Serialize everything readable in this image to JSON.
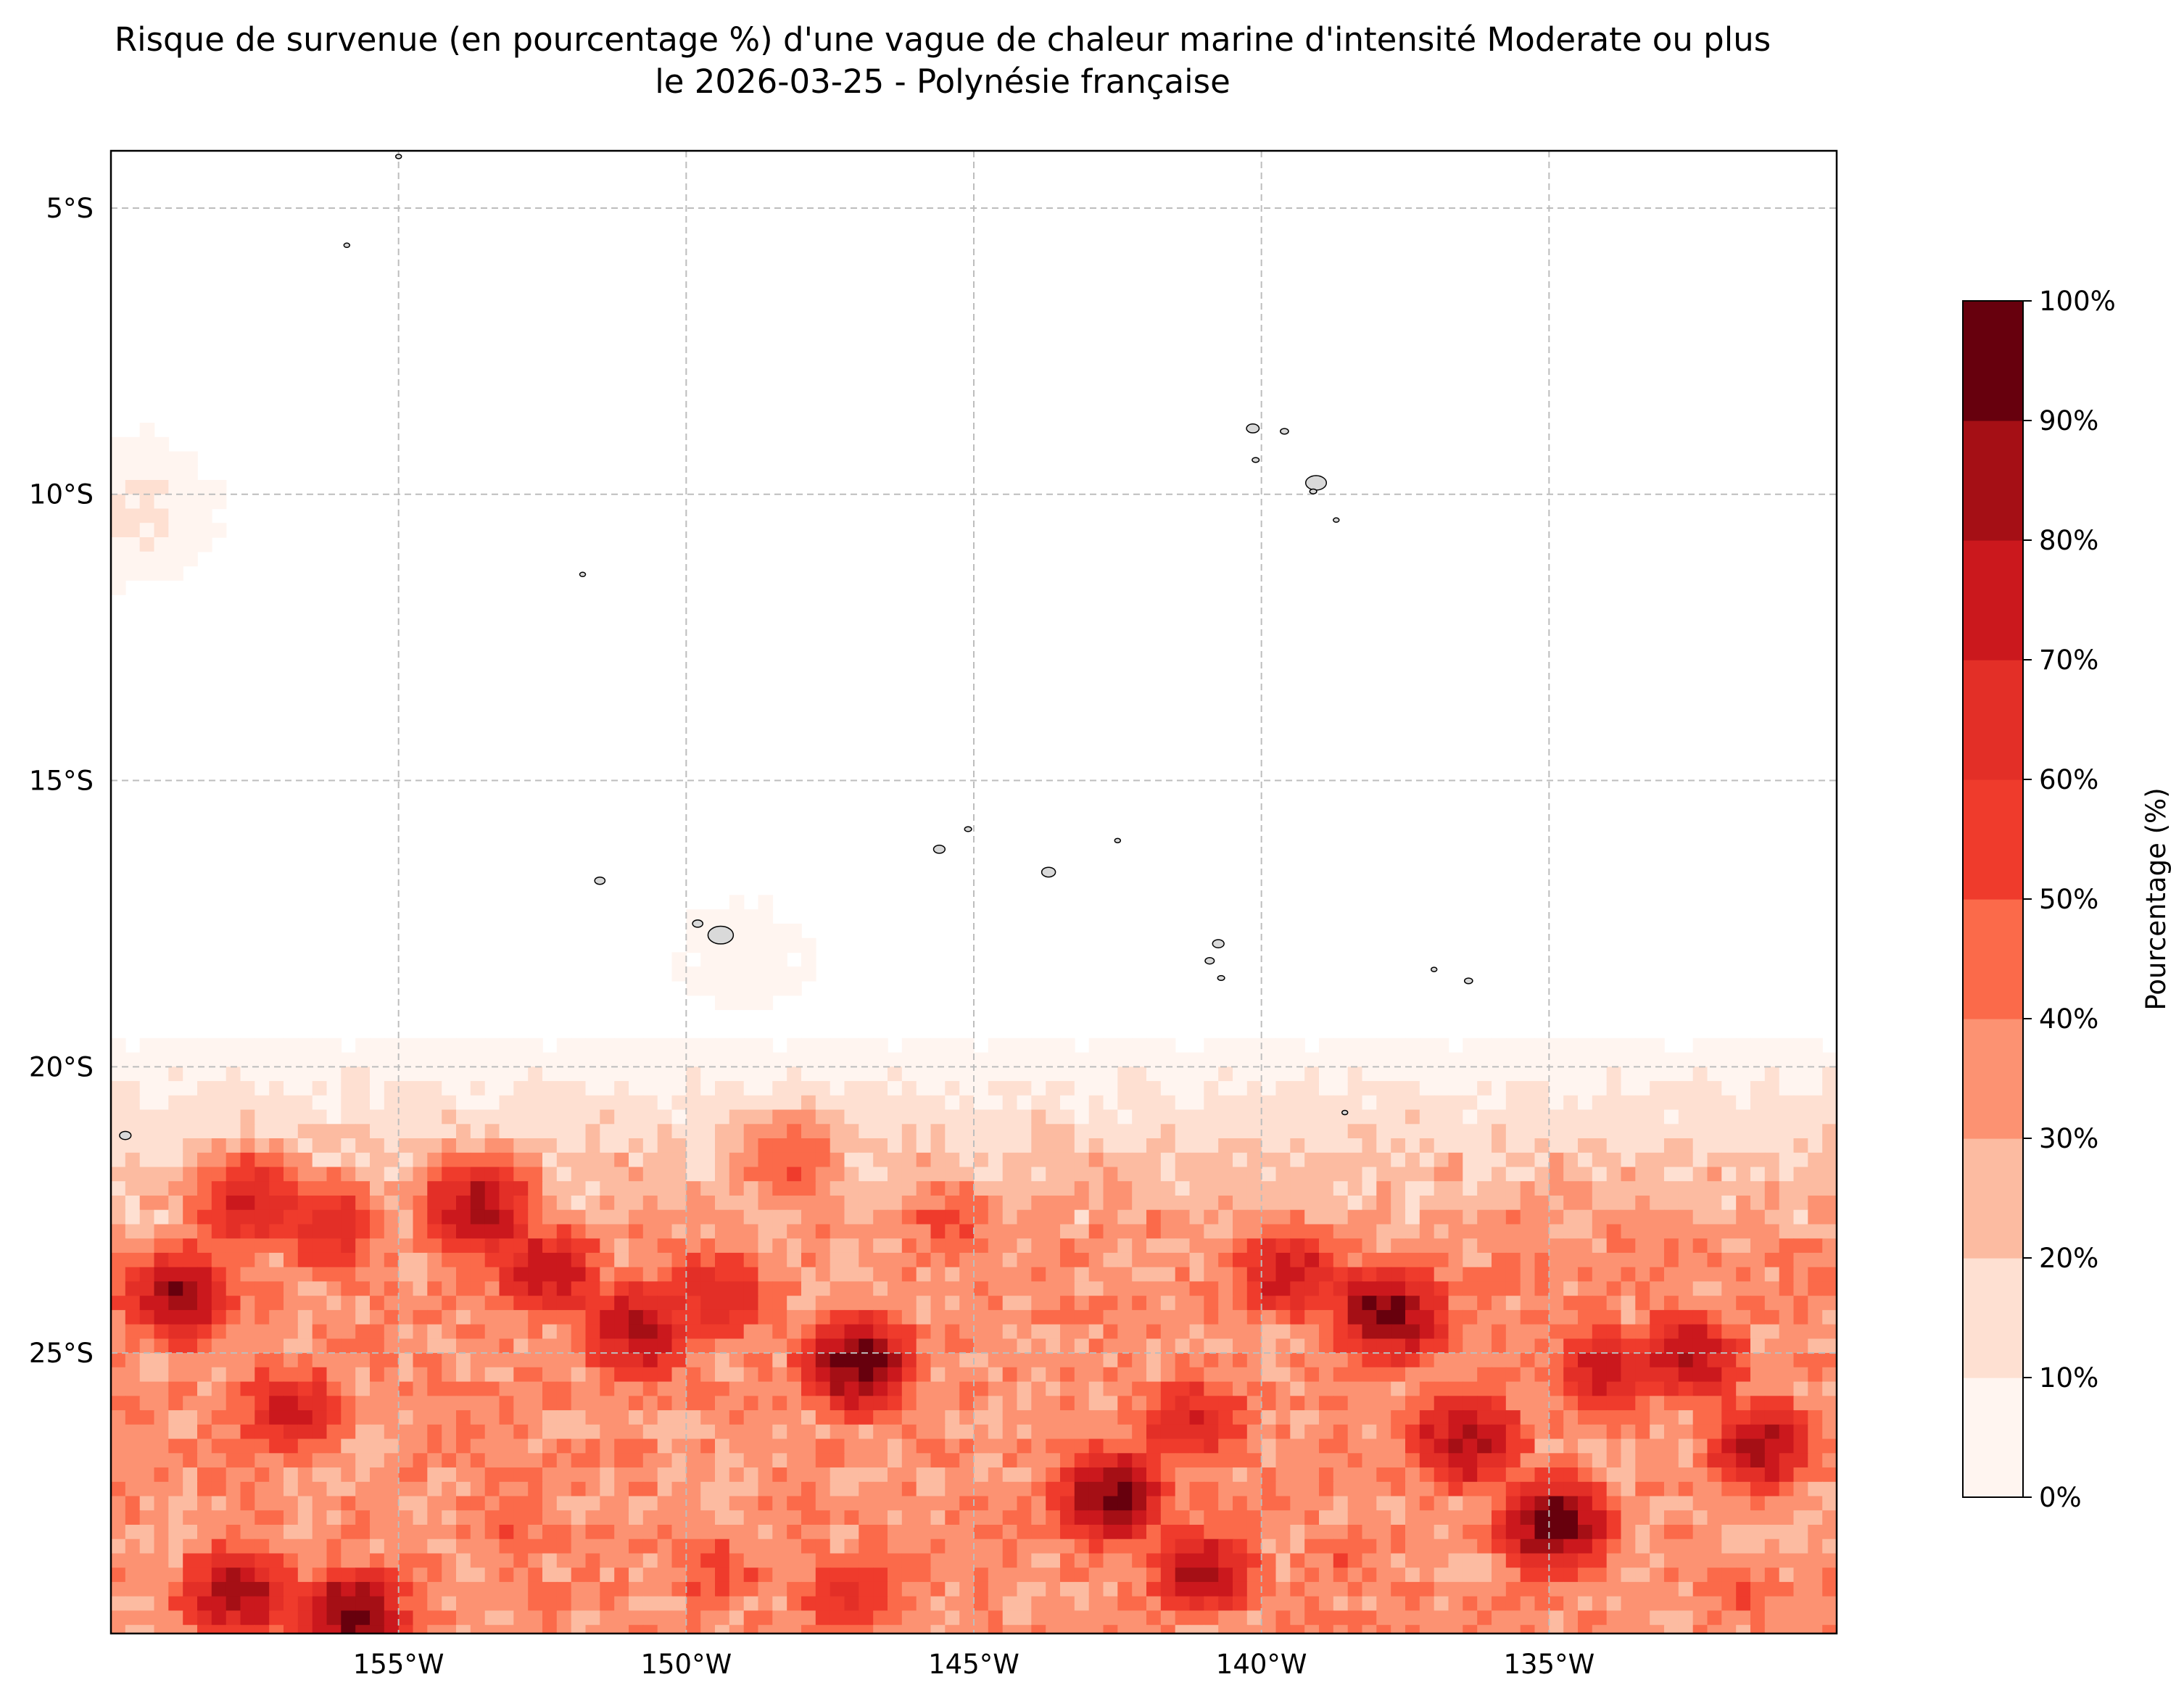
{
  "title": {
    "line1": "Risque de survenue (en pourcentage %) d'une vague de chaleur marine d'intensité Moderate ou plus",
    "line2": "le 2026-03-25 - Polynésie française"
  },
  "map": {
    "type": "filled-contour",
    "lon_range": [
      -160,
      -130
    ],
    "lat_range": [
      -29.9,
      -4.0
    ],
    "x_ticks": [
      {
        "value": -155,
        "label": "155°W"
      },
      {
        "value": -150,
        "label": "150°W"
      },
      {
        "value": -145,
        "label": "145°W"
      },
      {
        "value": -140,
        "label": "140°W"
      },
      {
        "value": -135,
        "label": "135°W"
      }
    ],
    "y_ticks": [
      {
        "value": -5,
        "label": "5°S"
      },
      {
        "value": -10,
        "label": "10°S"
      },
      {
        "value": -15,
        "label": "15°S"
      },
      {
        "value": -20,
        "label": "20°S"
      },
      {
        "value": -25,
        "label": "25°S"
      }
    ],
    "grid": true,
    "land_color": "#d9d9d9",
    "coast_color": "#000000",
    "hotspots": [
      {
        "lon": -158.8,
        "lat": -24.0,
        "value": 85
      },
      {
        "lon": -157.6,
        "lat": -22.4,
        "value": 72
      },
      {
        "lon": -156.2,
        "lat": -22.8,
        "value": 66
      },
      {
        "lon": -156.8,
        "lat": -26.0,
        "value": 72
      },
      {
        "lon": -153.6,
        "lat": -22.5,
        "value": 84
      },
      {
        "lon": -152.4,
        "lat": -23.6,
        "value": 78
      },
      {
        "lon": -150.8,
        "lat": -24.6,
        "value": 82
      },
      {
        "lon": -149.4,
        "lat": -24.0,
        "value": 70
      },
      {
        "lon": -147.0,
        "lat": -25.2,
        "value": 96
      },
      {
        "lon": -145.4,
        "lat": -22.8,
        "value": 52
      },
      {
        "lon": -148.2,
        "lat": -21.7,
        "value": 50
      },
      {
        "lon": -142.6,
        "lat": -27.5,
        "value": 92
      },
      {
        "lon": -141.2,
        "lat": -26.2,
        "value": 70
      },
      {
        "lon": -141.0,
        "lat": -28.8,
        "value": 80
      },
      {
        "lon": -139.5,
        "lat": -23.6,
        "value": 76
      },
      {
        "lon": -137.8,
        "lat": -24.3,
        "value": 95
      },
      {
        "lon": -136.4,
        "lat": -26.5,
        "value": 86
      },
      {
        "lon": -134.9,
        "lat": -28.0,
        "value": 97
      },
      {
        "lon": -134.0,
        "lat": -25.3,
        "value": 75
      },
      {
        "lon": -132.6,
        "lat": -25.1,
        "value": 80
      },
      {
        "lon": -131.3,
        "lat": -26.6,
        "value": 82
      },
      {
        "lon": -157.8,
        "lat": -29.2,
        "value": 86
      },
      {
        "lon": -155.8,
        "lat": -29.6,
        "value": 94
      },
      {
        "lon": -153.0,
        "lat": -28.0,
        "value": 45
      },
      {
        "lon": -149.5,
        "lat": -28.8,
        "value": 55
      },
      {
        "lon": -147.2,
        "lat": -29.3,
        "value": 62
      },
      {
        "lon": -144.4,
        "lat": -28.6,
        "value": 38
      },
      {
        "lon": -138.6,
        "lat": -28.5,
        "value": 45
      },
      {
        "lon": -131.8,
        "lat": -29.2,
        "value": 48
      },
      {
        "lon": -159.7,
        "lat": -10.3,
        "value": 12
      },
      {
        "lon": -149.0,
        "lat": -18.0,
        "value": 6
      }
    ],
    "islands": [
      {
        "lon": -155.0,
        "lat": -4.1,
        "size": 0.04
      },
      {
        "lon": -155.9,
        "lat": -5.65,
        "size": 0.05
      },
      {
        "lon": -151.8,
        "lat": -11.4,
        "size": 0.05
      },
      {
        "lon": -140.15,
        "lat": -8.85,
        "size": 0.11
      },
      {
        "lon": -139.6,
        "lat": -8.9,
        "size": 0.07
      },
      {
        "lon": -140.1,
        "lat": -9.4,
        "size": 0.06
      },
      {
        "lon": -139.05,
        "lat": -9.8,
        "size": 0.18
      },
      {
        "lon": -139.1,
        "lat": -9.95,
        "size": 0.06
      },
      {
        "lon": -138.7,
        "lat": -10.45,
        "size": 0.05
      },
      {
        "lon": -145.1,
        "lat": -15.85,
        "size": 0.06
      },
      {
        "lon": -145.6,
        "lat": -16.2,
        "size": 0.1
      },
      {
        "lon": -142.5,
        "lat": -16.05,
        "size": 0.05
      },
      {
        "lon": -143.7,
        "lat": -16.6,
        "size": 0.12
      },
      {
        "lon": -151.5,
        "lat": -16.75,
        "size": 0.09
      },
      {
        "lon": -149.8,
        "lat": -17.5,
        "size": 0.09
      },
      {
        "lon": -149.4,
        "lat": -17.7,
        "size": 0.22
      },
      {
        "lon": -140.75,
        "lat": -17.85,
        "size": 0.1
      },
      {
        "lon": -140.9,
        "lat": -18.15,
        "size": 0.08
      },
      {
        "lon": -140.7,
        "lat": -18.45,
        "size": 0.06
      },
      {
        "lon": -137.0,
        "lat": -18.3,
        "size": 0.05
      },
      {
        "lon": -136.4,
        "lat": -18.5,
        "size": 0.07
      },
      {
        "lon": -138.55,
        "lat": -20.8,
        "size": 0.05
      },
      {
        "lon": -159.75,
        "lat": -21.2,
        "size": 0.1
      }
    ]
  },
  "colorbar": {
    "label": "Pourcentage (%)",
    "levels": [
      0,
      10,
      20,
      30,
      40,
      50,
      60,
      70,
      80,
      90,
      100
    ],
    "tick_labels": [
      "0%",
      "10%",
      "20%",
      "30%",
      "40%",
      "50%",
      "60%",
      "70%",
      "80%",
      "90%",
      "100%"
    ],
    "colors": [
      "#fff5f0",
      "#fee0d2",
      "#fcbba1",
      "#fc9272",
      "#fb6a4a",
      "#ef3b2c",
      "#e32f27",
      "#cb181d",
      "#a50f15",
      "#67000d"
    ]
  }
}
